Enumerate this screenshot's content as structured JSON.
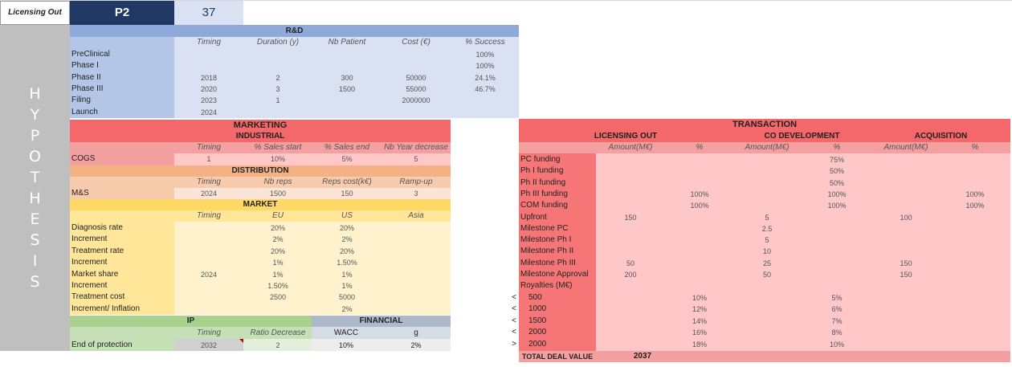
{
  "header": {
    "label": "Licensing Out",
    "product": "P2",
    "number": "37"
  },
  "side_letters": [
    "H",
    "Y",
    "P",
    "O",
    "T",
    "H",
    "E",
    "S",
    "I",
    "S"
  ],
  "rd": {
    "title": "R&D",
    "columns": [
      "Timing",
      "Duration (y)",
      "Nb Patient",
      "Cost (€)",
      "% Success"
    ],
    "rows": [
      {
        "label": "PreClinical",
        "timing": "",
        "duration": "",
        "patients": "",
        "cost": "",
        "success": "100%"
      },
      {
        "label": "Phase I",
        "timing": "",
        "duration": "",
        "patients": "",
        "cost": "",
        "success": "100%"
      },
      {
        "label": "Phase II",
        "timing": "2018",
        "duration": "2",
        "patients": "300",
        "cost": "50000",
        "success": "24.1%"
      },
      {
        "label": "Phase III",
        "timing": "2020",
        "duration": "3",
        "patients": "1500",
        "cost": "55000",
        "success": "46.7%"
      },
      {
        "label": "Filing",
        "timing": "2023",
        "duration": "1",
        "patients": "",
        "cost": "2000000",
        "success": ""
      },
      {
        "label": "Launch",
        "timing": "2024",
        "duration": "",
        "patients": "",
        "cost": "",
        "success": ""
      }
    ]
  },
  "marketing": {
    "title": "MARKETING",
    "industrial": {
      "title": "INDUSTRIAL",
      "columns": [
        "Timing",
        "% Sales start",
        "% Sales end",
        "Nb Year decrease"
      ],
      "row": {
        "label": "COGS",
        "timing": "1",
        "start": "10%",
        "end": "5%",
        "years": "5"
      }
    },
    "distribution": {
      "title": "DISTRIBUTION",
      "columns": [
        "Timing",
        "Nb reps",
        "Reps cost(k€)",
        "Ramp-up"
      ],
      "row": {
        "label": "M&S",
        "timing": "2024",
        "reps": "1500",
        "cost": "150",
        "ramp": "3"
      }
    },
    "market": {
      "title": "MARKET",
      "columns": [
        "Timing",
        "EU",
        "US",
        "Asia"
      ],
      "rows": [
        {
          "label": "Diagnosis rate",
          "timing": "",
          "eu": "20%",
          "us": "20%",
          "asia": ""
        },
        {
          "label": "Increment",
          "timing": "",
          "eu": "2%",
          "us": "2%",
          "asia": ""
        },
        {
          "label": "Treatment rate",
          "timing": "",
          "eu": "20%",
          "us": "20%",
          "asia": ""
        },
        {
          "label": "Increment",
          "timing": "",
          "eu": "1%",
          "us": "1.50%",
          "asia": ""
        },
        {
          "label": "Market share",
          "timing": "2024",
          "eu": "1%",
          "us": "1%",
          "asia": ""
        },
        {
          "label": "Increment",
          "timing": "",
          "eu": "1.50%",
          "us": "1%",
          "asia": ""
        },
        {
          "label": "Treatment cost",
          "timing": "",
          "eu": "2500",
          "us": "5000",
          "asia": ""
        },
        {
          "label": "Increment/ Inflation",
          "timing": "",
          "eu": "",
          "us": "2%",
          "asia": ""
        }
      ]
    },
    "ip": {
      "title": "IP",
      "columns": [
        "Timing",
        "Ratio Decrease"
      ],
      "row": {
        "label": "End of protection",
        "timing": "2032",
        "ratio": "2"
      }
    },
    "financial": {
      "title": "FINANCIAL",
      "columns": [
        "WACC",
        "g"
      ],
      "row": {
        "wacc": "10%",
        "g": "2%"
      }
    }
  },
  "transaction": {
    "title": "TRANSACTION",
    "groups": [
      "LICENSING OUT",
      "CO DEVELOPMENT",
      "ACQUISITION"
    ],
    "subcols": [
      "Amount(M€)",
      "%"
    ],
    "rows": [
      {
        "label": "PC funding",
        "lo_amt": "",
        "lo_pct": "",
        "co_amt": "",
        "co_pct": "75%",
        "ac_amt": "",
        "ac_pct": ""
      },
      {
        "label": "Ph I funding",
        "lo_amt": "",
        "lo_pct": "",
        "co_amt": "",
        "co_pct": "50%",
        "ac_amt": "",
        "ac_pct": ""
      },
      {
        "label": "Ph II funding",
        "lo_amt": "",
        "lo_pct": "",
        "co_amt": "",
        "co_pct": "50%",
        "ac_amt": "",
        "ac_pct": ""
      },
      {
        "label": "Ph III funding",
        "lo_amt": "",
        "lo_pct": "100%",
        "co_amt": "",
        "co_pct": "100%",
        "ac_amt": "",
        "ac_pct": "100%"
      },
      {
        "label": "COM funding",
        "lo_amt": "",
        "lo_pct": "100%",
        "co_amt": "",
        "co_pct": "100%",
        "ac_amt": "",
        "ac_pct": "100%"
      },
      {
        "label": "Upfront",
        "lo_amt": "150",
        "lo_pct": "",
        "co_amt": "5",
        "co_pct": "",
        "ac_amt": "100",
        "ac_pct": ""
      },
      {
        "label": "Milestone PC",
        "lo_amt": "",
        "lo_pct": "",
        "co_amt": "2.5",
        "co_pct": "",
        "ac_amt": "",
        "ac_pct": ""
      },
      {
        "label": "Milestone Ph I",
        "lo_amt": "",
        "lo_pct": "",
        "co_amt": "5",
        "co_pct": "",
        "ac_amt": "",
        "ac_pct": ""
      },
      {
        "label": "Milestone Ph II",
        "lo_amt": "",
        "lo_pct": "",
        "co_amt": "10",
        "co_pct": "",
        "ac_amt": "",
        "ac_pct": ""
      },
      {
        "label": "Milestone Ph III",
        "lo_amt": "50",
        "lo_pct": "",
        "co_amt": "25",
        "co_pct": "",
        "ac_amt": "150",
        "ac_pct": ""
      },
      {
        "label": "Milestone Approval",
        "lo_amt": "200",
        "lo_pct": "",
        "co_amt": "50",
        "co_pct": "",
        "ac_amt": "150",
        "ac_pct": ""
      },
      {
        "label": "Royalties (M€)",
        "lo_amt": "",
        "lo_pct": "",
        "co_amt": "",
        "co_pct": "",
        "ac_amt": "",
        "ac_pct": ""
      }
    ],
    "royalties": [
      {
        "op": "<",
        "threshold": "500",
        "lo_pct": "10%",
        "co_pct": "5%"
      },
      {
        "op": "<",
        "threshold": "1000",
        "lo_pct": "12%",
        "co_pct": "6%"
      },
      {
        "op": "<",
        "threshold": "1500",
        "lo_pct": "14%",
        "co_pct": "7%"
      },
      {
        "op": "<",
        "threshold": "2000",
        "lo_pct": "16%",
        "co_pct": "8%"
      },
      {
        "op": ">",
        "threshold": "2000",
        "lo_pct": "18%",
        "co_pct": "10%"
      }
    ],
    "total_label": "TOTAL DEAL VALUE",
    "total_value": "2037"
  },
  "colors": {
    "blue_header": "#8eaadb",
    "blue_light": "#d9e1f2",
    "blue_side": "#b4c6e7",
    "navy": "#1f3864",
    "red_header": "#f4676a",
    "red_light": "#ffc7c7",
    "red_side": "#f4a0a0",
    "orange_header": "#f4b183",
    "orange_light": "#fce4d6",
    "yellow_header": "#ffd966",
    "yellow_light": "#fff2cc",
    "green_header": "#a9d18e",
    "green_light": "#e2efda",
    "gray_header": "#adb9ca",
    "gray_side": "#bfbfbf"
  }
}
